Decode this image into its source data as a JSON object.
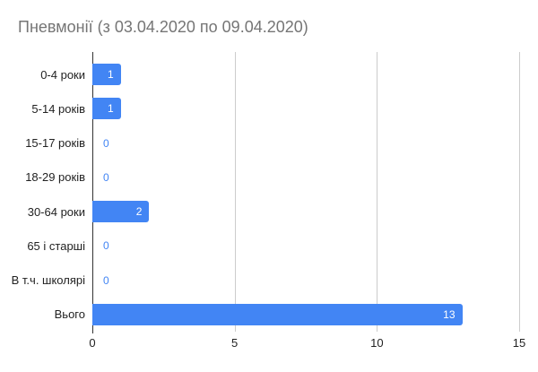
{
  "chart_data": {
    "type": "bar",
    "orientation": "horizontal",
    "title": "Пневмонії (з 03.04.2020 по 09.04.2020)",
    "categories": [
      "0-4 роки",
      "5-14 років",
      "15-17 років",
      "18-29 років",
      "30-64 роки",
      "65 і старші",
      "В т.ч. школярі",
      "Вього"
    ],
    "values": [
      1,
      1,
      0,
      0,
      2,
      0,
      0,
      13
    ],
    "xlabel": "",
    "ylabel": "",
    "xlim": [
      0,
      15
    ],
    "xticks": [
      0,
      5,
      10,
      15
    ],
    "grid": true,
    "legend": "none",
    "colors": {
      "bar": "#4285f4",
      "value_label_inside": "#ffffff",
      "value_label_outside": "#4285f4",
      "title": "#757575",
      "axis_text": "#222222",
      "gridline": "#cccccc",
      "axis_line": "#333333",
      "background": "#ffffff"
    }
  }
}
